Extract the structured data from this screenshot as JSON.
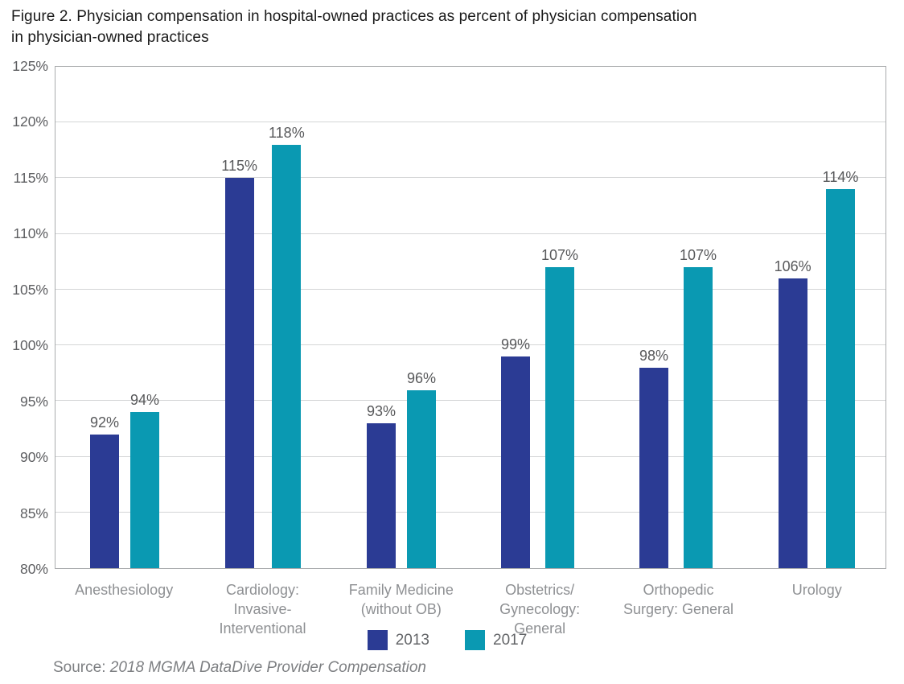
{
  "figure": {
    "source_prefix": "Source:",
    "source_text": "2018 MGMA DataDive Provider Compensation"
  },
  "chart_data": {
    "type": "bar",
    "title": "Figure 2. Physician compensation in hospital-owned practices as percent of physician compensation\nin physician-owned practices",
    "categories": [
      "Anesthesiology",
      "Cardiology:\nInvasive-Interventional",
      "Family Medicine\n(without OB)",
      "Obstetrics/\nGynecology: General",
      "Orthopedic\nSurgery: General",
      "Urology"
    ],
    "series": [
      {
        "name": "2013",
        "color": "#2b3b94",
        "values": [
          92,
          115,
          93,
          99,
          98,
          106
        ]
      },
      {
        "name": "2017",
        "color": "#0a99b2",
        "values": [
          94,
          118,
          96,
          107,
          107,
          114
        ]
      }
    ],
    "value_suffix": "%",
    "xlabel": "",
    "ylabel": "",
    "ylim": [
      80,
      125
    ],
    "yticks": [
      80,
      85,
      90,
      95,
      100,
      105,
      110,
      115,
      120,
      125
    ],
    "grid": true,
    "data_labels": true,
    "legend_position": "bottom"
  }
}
